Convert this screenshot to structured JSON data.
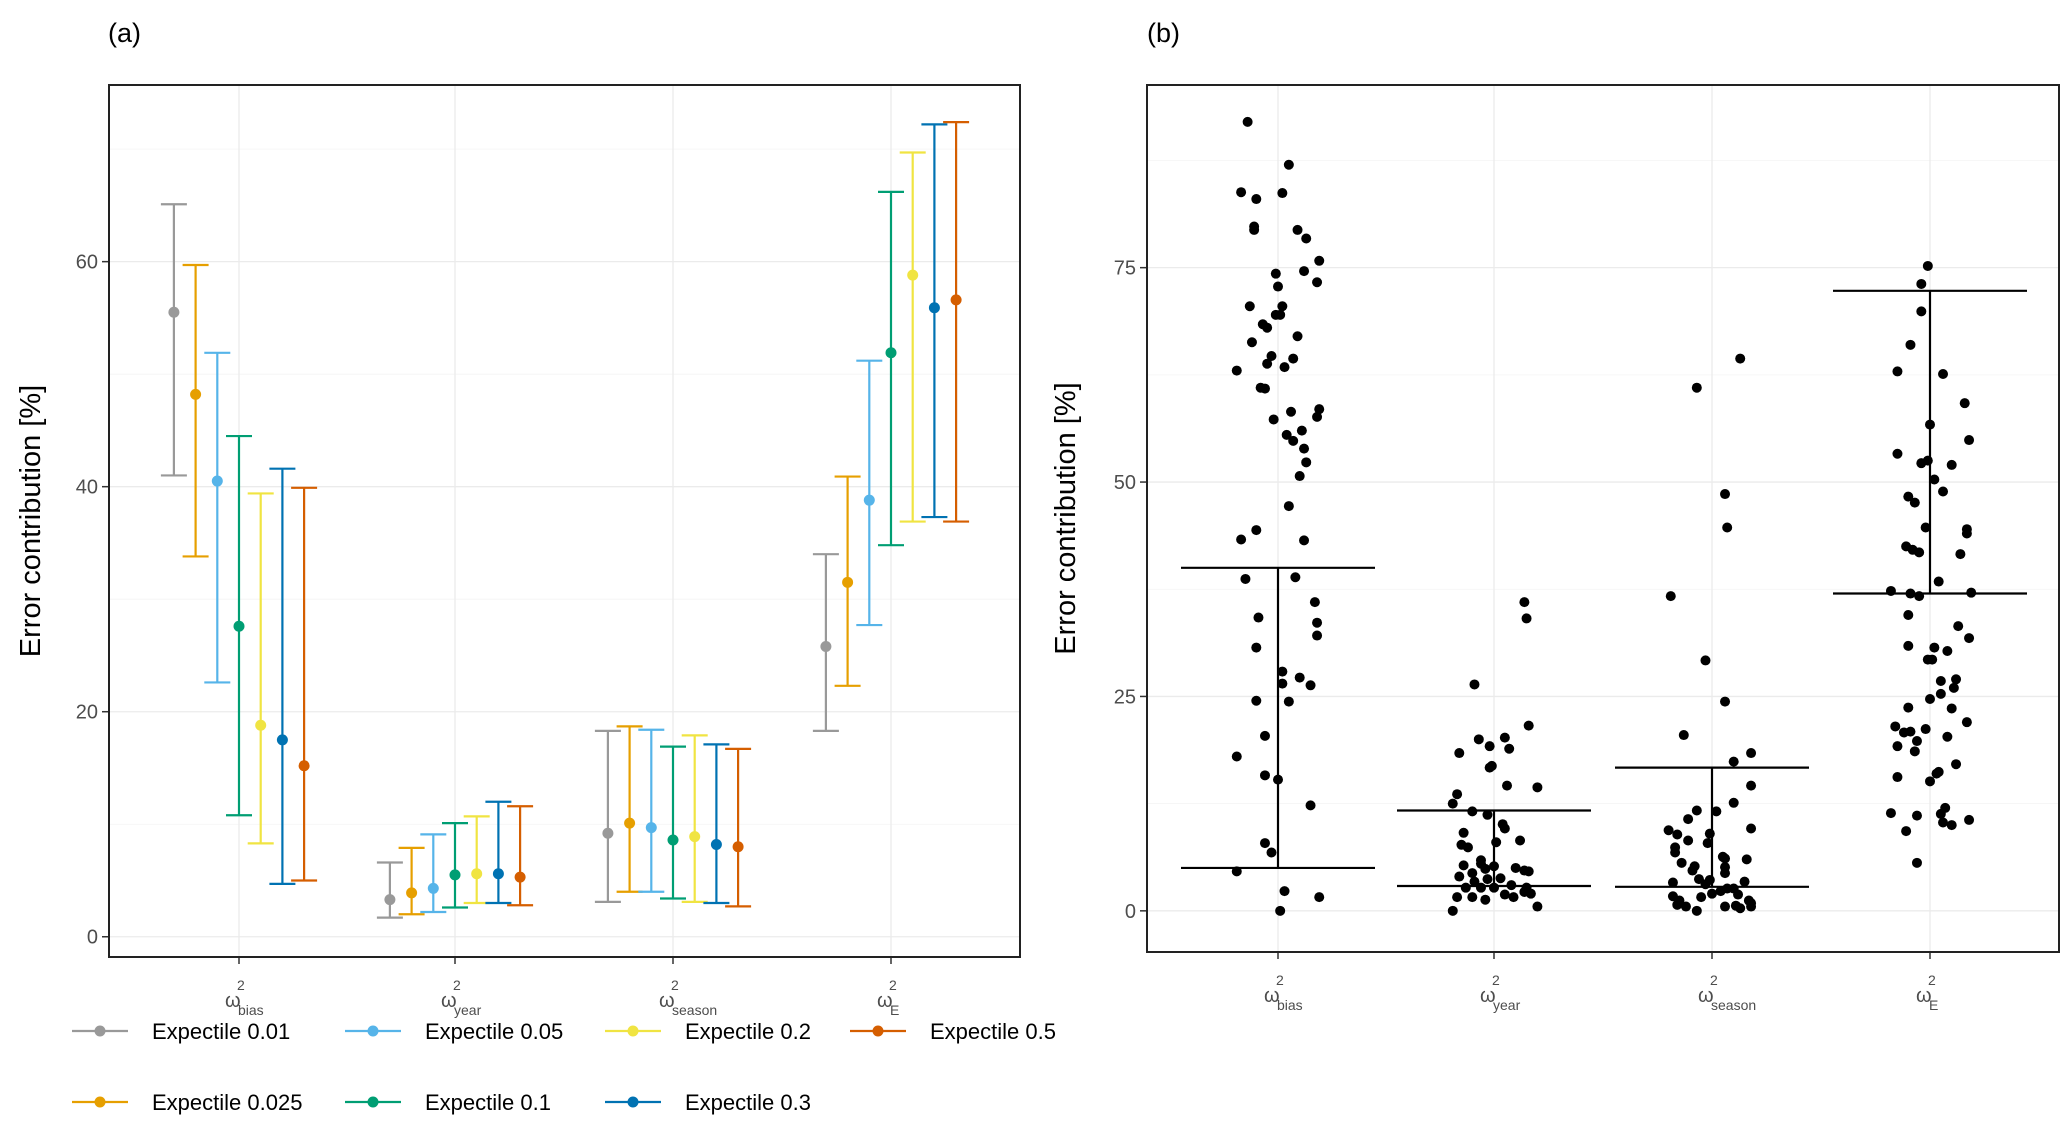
{
  "panels": {
    "a_label": "(a)",
    "b_label": "(b)"
  },
  "chart_data": [
    {
      "type": "errorbar",
      "panel": "(a)",
      "ylabel": "Error contribution [%]",
      "ylim": [
        -1.8,
        75.7
      ],
      "yticks": [
        0,
        20,
        40,
        60
      ],
      "grid": true,
      "categories": [
        {
          "symbol": "ω",
          "sup": "2",
          "sub": "bias"
        },
        {
          "symbol": "ω",
          "sup": "2",
          "sub": "year"
        },
        {
          "symbol": "ω",
          "sup": "2",
          "sub": "season"
        },
        {
          "symbol": "ω",
          "sup": "2",
          "sub": "E"
        }
      ],
      "legend_position": "bottom",
      "series": [
        {
          "name": "Expectile 0.01",
          "color": "#999999",
          "mid": [
            55.5,
            3.3,
            9.2,
            25.8
          ],
          "lower": [
            41.0,
            1.7,
            3.1,
            18.3
          ],
          "upper": [
            65.1,
            6.6,
            18.3,
            34.0
          ]
        },
        {
          "name": "Expectile 0.025",
          "color": "#E69F00",
          "mid": [
            48.2,
            3.9,
            10.1,
            31.5
          ],
          "lower": [
            33.8,
            2.0,
            4.0,
            22.3
          ],
          "upper": [
            59.7,
            7.9,
            18.7,
            40.9
          ]
        },
        {
          "name": "Expectile 0.05",
          "color": "#56B4E9",
          "mid": [
            40.5,
            4.3,
            9.7,
            38.8
          ],
          "lower": [
            22.6,
            2.2,
            4.0,
            27.7
          ],
          "upper": [
            51.9,
            9.1,
            18.4,
            51.2
          ]
        },
        {
          "name": "Expectile 0.1",
          "color": "#009E73",
          "mid": [
            27.6,
            5.5,
            8.6,
            51.9
          ],
          "lower": [
            10.8,
            2.6,
            3.4,
            34.8
          ],
          "upper": [
            44.5,
            10.1,
            16.9,
            66.2
          ]
        },
        {
          "name": "Expectile 0.2",
          "color": "#F0E442",
          "mid": [
            18.8,
            5.6,
            8.9,
            58.8
          ],
          "lower": [
            8.3,
            3.0,
            3.1,
            36.9
          ],
          "upper": [
            39.4,
            10.7,
            17.9,
            69.7
          ]
        },
        {
          "name": "Expectile 0.3",
          "color": "#0072B2",
          "mid": [
            17.5,
            5.6,
            8.2,
            55.9
          ],
          "lower": [
            4.7,
            3.0,
            3.0,
            37.3
          ],
          "upper": [
            41.6,
            12.0,
            17.1,
            72.2
          ]
        },
        {
          "name": "Expectile 0.5",
          "color": "#D55E00",
          "mid": [
            15.2,
            5.3,
            8.0,
            56.6
          ],
          "lower": [
            5.0,
            2.8,
            2.7,
            36.9
          ],
          "upper": [
            39.9,
            11.6,
            16.7,
            72.4
          ]
        }
      ]
    },
    {
      "type": "scatter",
      "panel": "(b)",
      "ylabel": "Error contribution [%]",
      "ylim": [
        -4.8,
        96.3
      ],
      "yticks": [
        0,
        25,
        50,
        75
      ],
      "grid": true,
      "point_color": "#000000",
      "categories": [
        {
          "symbol": "ω",
          "sup": "2",
          "sub": "bias"
        },
        {
          "symbol": "ω",
          "sup": "2",
          "sub": "year"
        },
        {
          "symbol": "ω",
          "sup": "2",
          "sub": "season"
        },
        {
          "symbol": "ω",
          "sup": "2",
          "sub": "E"
        }
      ],
      "intervals": [
        {
          "lower": 5.0,
          "upper": 40.0
        },
        {
          "lower": 2.9,
          "upper": 11.7
        },
        {
          "lower": 2.8,
          "upper": 16.7
        },
        {
          "lower": 37.0,
          "upper": 72.3
        }
      ],
      "points_note_jitter": "each point is [horizontal jitter in category units, value]",
      "points": [
        [
          [
            -0.14,
            92.0
          ],
          [
            0.05,
            87.0
          ],
          [
            -0.17,
            83.8
          ],
          [
            -0.1,
            83.0
          ],
          [
            0.02,
            83.7
          ],
          [
            -0.11,
            79.8
          ],
          [
            -0.11,
            79.4
          ],
          [
            0.09,
            79.4
          ],
          [
            0.13,
            78.4
          ],
          [
            0.19,
            75.8
          ],
          [
            0.12,
            74.6
          ],
          [
            -0.01,
            74.3
          ],
          [
            0.18,
            73.3
          ],
          [
            0.0,
            72.8
          ],
          [
            -0.13,
            70.5
          ],
          [
            0.02,
            70.5
          ],
          [
            -0.01,
            69.5
          ],
          [
            0.01,
            69.5
          ],
          [
            -0.07,
            68.4
          ],
          [
            -0.05,
            68.0
          ],
          [
            0.09,
            67.0
          ],
          [
            -0.12,
            66.3
          ],
          [
            -0.03,
            64.7
          ],
          [
            -0.05,
            63.8
          ],
          [
            0.07,
            64.4
          ],
          [
            0.03,
            63.4
          ],
          [
            -0.19,
            63.0
          ],
          [
            -0.08,
            61.0
          ],
          [
            -0.06,
            60.9
          ],
          [
            0.19,
            58.5
          ],
          [
            0.06,
            58.2
          ],
          [
            0.18,
            57.6
          ],
          [
            -0.02,
            57.3
          ],
          [
            0.04,
            55.5
          ],
          [
            0.11,
            56.0
          ],
          [
            0.07,
            54.8
          ],
          [
            0.12,
            53.9
          ],
          [
            0.13,
            52.3
          ],
          [
            0.1,
            50.7
          ],
          [
            0.05,
            47.2
          ],
          [
            -0.1,
            44.4
          ],
          [
            -0.17,
            43.3
          ],
          [
            0.12,
            43.2
          ],
          [
            -0.15,
            38.7
          ],
          [
            0.08,
            38.9
          ],
          [
            0.17,
            36.0
          ],
          [
            -0.09,
            34.2
          ],
          [
            0.18,
            33.6
          ],
          [
            0.18,
            32.1
          ],
          [
            -0.1,
            30.7
          ],
          [
            0.02,
            27.9
          ],
          [
            0.02,
            26.5
          ],
          [
            0.1,
            27.2
          ],
          [
            0.15,
            26.3
          ],
          [
            -0.1,
            24.5
          ],
          [
            0.05,
            24.4
          ],
          [
            -0.06,
            20.4
          ],
          [
            -0.19,
            18.0
          ],
          [
            -0.06,
            15.8
          ],
          [
            0.0,
            15.3
          ],
          [
            0.15,
            12.3
          ],
          [
            -0.06,
            7.9
          ],
          [
            -0.03,
            6.8
          ],
          [
            -0.19,
            4.6
          ],
          [
            0.03,
            2.3
          ],
          [
            0.19,
            1.6
          ],
          [
            0.01,
            0.0
          ]
        ],
        [
          [
            -0.09,
            26.4
          ],
          [
            0.14,
            36.0
          ],
          [
            0.15,
            34.1
          ],
          [
            0.16,
            21.6
          ],
          [
            -0.07,
            20.0
          ],
          [
            0.05,
            20.2
          ],
          [
            -0.02,
            19.2
          ],
          [
            0.07,
            18.9
          ],
          [
            -0.16,
            18.4
          ],
          [
            -0.01,
            16.9
          ],
          [
            -0.02,
            16.7
          ],
          [
            0.06,
            14.6
          ],
          [
            0.2,
            14.4
          ],
          [
            -0.17,
            13.6
          ],
          [
            -0.19,
            12.5
          ],
          [
            -0.1,
            11.6
          ],
          [
            -0.03,
            11.2
          ],
          [
            0.04,
            10.1
          ],
          [
            0.05,
            9.6
          ],
          [
            -0.14,
            9.1
          ],
          [
            0.12,
            8.2
          ],
          [
            -0.15,
            7.7
          ],
          [
            -0.12,
            7.4
          ],
          [
            0.01,
            8.0
          ],
          [
            -0.06,
            5.9
          ],
          [
            -0.14,
            5.3
          ],
          [
            0.0,
            5.2
          ],
          [
            0.14,
            4.7
          ],
          [
            0.16,
            4.6
          ],
          [
            -0.06,
            5.5
          ],
          [
            -0.04,
            4.9
          ],
          [
            -0.1,
            4.4
          ],
          [
            0.1,
            5.0
          ],
          [
            -0.16,
            4.0
          ],
          [
            -0.09,
            3.4
          ],
          [
            -0.03,
            3.7
          ],
          [
            0.03,
            3.8
          ],
          [
            0.08,
            3.0
          ],
          [
            -0.13,
            2.7
          ],
          [
            -0.06,
            2.7
          ],
          [
            0.0,
            2.7
          ],
          [
            0.15,
            2.7
          ],
          [
            0.14,
            2.2
          ],
          [
            0.17,
            2.0
          ],
          [
            -0.17,
            1.6
          ],
          [
            -0.1,
            1.6
          ],
          [
            -0.04,
            1.3
          ],
          [
            0.05,
            1.9
          ],
          [
            0.09,
            1.6
          ],
          [
            -0.19,
            0.0
          ],
          [
            0.2,
            0.5
          ]
        ],
        [
          [
            0.13,
            64.4
          ],
          [
            -0.07,
            61.0
          ],
          [
            0.06,
            48.6
          ],
          [
            0.07,
            44.7
          ],
          [
            -0.19,
            36.7
          ],
          [
            -0.03,
            29.2
          ],
          [
            0.06,
            24.4
          ],
          [
            -0.13,
            20.5
          ],
          [
            0.18,
            18.4
          ],
          [
            0.1,
            17.4
          ],
          [
            0.18,
            14.6
          ],
          [
            0.1,
            12.6
          ],
          [
            -0.07,
            11.7
          ],
          [
            0.02,
            11.6
          ],
          [
            -0.11,
            10.7
          ],
          [
            0.18,
            9.6
          ],
          [
            -0.2,
            9.4
          ],
          [
            -0.16,
            8.9
          ],
          [
            -0.11,
            8.2
          ],
          [
            -0.01,
            9.0
          ],
          [
            -0.02,
            7.9
          ],
          [
            -0.17,
            7.4
          ],
          [
            -0.17,
            6.8
          ],
          [
            0.05,
            6.3
          ],
          [
            0.16,
            6.0
          ],
          [
            0.06,
            6.1
          ],
          [
            -0.14,
            5.6
          ],
          [
            -0.08,
            5.2
          ],
          [
            0.06,
            5.1
          ],
          [
            0.06,
            4.4
          ],
          [
            -0.09,
            4.7
          ],
          [
            -0.18,
            3.3
          ],
          [
            -0.06,
            3.7
          ],
          [
            -0.03,
            3.1
          ],
          [
            -0.01,
            3.6
          ],
          [
            0.15,
            3.4
          ],
          [
            0.07,
            2.6
          ],
          [
            0.04,
            2.3
          ],
          [
            0.1,
            2.6
          ],
          [
            -0.18,
            1.7
          ],
          [
            -0.15,
            1.2
          ],
          [
            -0.05,
            1.6
          ],
          [
            0.0,
            2.0
          ],
          [
            0.12,
            1.9
          ],
          [
            0.17,
            1.2
          ],
          [
            -0.16,
            0.7
          ],
          [
            -0.12,
            0.5
          ],
          [
            0.06,
            0.5
          ],
          [
            0.11,
            0.6
          ],
          [
            0.13,
            0.3
          ],
          [
            0.18,
            0.5
          ],
          [
            -0.07,
            0.0
          ],
          [
            0.18,
            0.9
          ]
        ],
        [
          [
            -0.01,
            75.2
          ],
          [
            -0.04,
            73.1
          ],
          [
            -0.04,
            69.9
          ],
          [
            -0.09,
            66.0
          ],
          [
            -0.15,
            62.9
          ],
          [
            0.06,
            62.6
          ],
          [
            0.16,
            59.2
          ],
          [
            0.0,
            56.7
          ],
          [
            0.18,
            54.9
          ],
          [
            -0.15,
            53.3
          ],
          [
            -0.04,
            52.2
          ],
          [
            -0.01,
            52.5
          ],
          [
            0.1,
            52.0
          ],
          [
            0.02,
            50.3
          ],
          [
            0.06,
            48.9
          ],
          [
            -0.1,
            48.3
          ],
          [
            -0.07,
            47.6
          ],
          [
            -0.02,
            44.7
          ],
          [
            0.17,
            44.5
          ],
          [
            0.17,
            44.0
          ],
          [
            -0.11,
            42.5
          ],
          [
            -0.08,
            42.1
          ],
          [
            -0.05,
            41.8
          ],
          [
            0.14,
            41.6
          ],
          [
            0.04,
            38.4
          ],
          [
            -0.18,
            37.3
          ],
          [
            -0.09,
            37.0
          ],
          [
            -0.05,
            36.7
          ],
          [
            0.19,
            37.1
          ],
          [
            -0.1,
            34.5
          ],
          [
            0.13,
            33.2
          ],
          [
            0.18,
            31.8
          ],
          [
            -0.1,
            30.9
          ],
          [
            0.02,
            30.7
          ],
          [
            0.08,
            30.3
          ],
          [
            -0.01,
            29.3
          ],
          [
            0.01,
            29.3
          ],
          [
            0.05,
            26.8
          ],
          [
            0.12,
            27.0
          ],
          [
            0.11,
            26.0
          ],
          [
            0.0,
            24.7
          ],
          [
            0.05,
            25.3
          ],
          [
            -0.1,
            23.7
          ],
          [
            0.1,
            23.6
          ],
          [
            0.17,
            22.0
          ],
          [
            -0.16,
            21.5
          ],
          [
            -0.12,
            20.8
          ],
          [
            -0.09,
            20.9
          ],
          [
            -0.02,
            21.2
          ],
          [
            0.08,
            20.3
          ],
          [
            -0.06,
            19.8
          ],
          [
            -0.15,
            19.2
          ],
          [
            -0.07,
            18.6
          ],
          [
            0.12,
            17.1
          ],
          [
            0.04,
            16.2
          ],
          [
            0.03,
            16.0
          ],
          [
            -0.15,
            15.6
          ],
          [
            0.0,
            15.1
          ],
          [
            0.07,
            12.0
          ],
          [
            -0.18,
            11.4
          ],
          [
            -0.06,
            11.1
          ],
          [
            0.05,
            11.3
          ],
          [
            0.18,
            10.6
          ],
          [
            0.06,
            10.3
          ],
          [
            0.1,
            10.0
          ],
          [
            -0.11,
            9.3
          ],
          [
            -0.06,
            5.6
          ]
        ]
      ]
    }
  ]
}
